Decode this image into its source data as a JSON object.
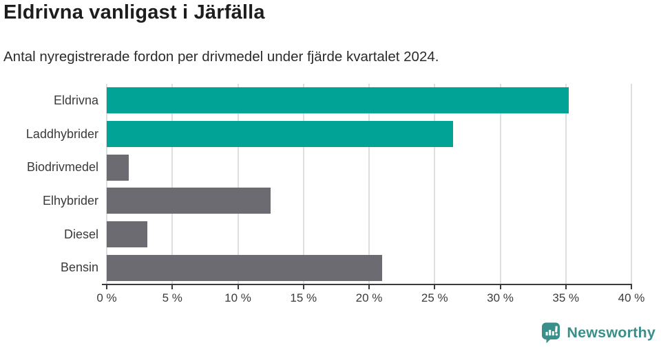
{
  "header": {
    "title": "Eldrivna vanligast i Järfälla",
    "subtitle": "Antal nyregistrerade fordon per drivmedel under fjärde kvartalet 2024."
  },
  "chart_data": {
    "type": "bar",
    "orientation": "horizontal",
    "categories": [
      "Eldrivna",
      "Laddhybrider",
      "Biodrivmedel",
      "Elhybrider",
      "Diesel",
      "Bensin"
    ],
    "values": [
      35.2,
      26.4,
      1.7,
      12.5,
      3.1,
      21.0
    ],
    "unit": "%",
    "bar_colors": [
      "#00a396",
      "#00a396",
      "#6c6b72",
      "#6c6b72",
      "#6c6b72",
      "#6c6b72"
    ],
    "highlight_color": "#00a396",
    "base_color": "#6c6b72",
    "xlim": [
      0,
      40
    ],
    "x_ticks": [
      0,
      5,
      10,
      15,
      20,
      25,
      30,
      35,
      40
    ],
    "x_tick_labels": [
      "0 %",
      "5 %",
      "10 %",
      "15 %",
      "20 %",
      "25 %",
      "30 %",
      "35 %",
      "40 %"
    ],
    "grid": "vertical",
    "gridline_color": "#dedede",
    "axis_color": "#3a3a3a",
    "legend": "none",
    "title": "Eldrivna vanligast i Järfälla",
    "xlabel": "",
    "ylabel": ""
  },
  "footer": {
    "brand": "Newsworthy",
    "brand_color": "#3b8f8a",
    "logo_icon": "bar-chart-speech-bubble-icon"
  }
}
